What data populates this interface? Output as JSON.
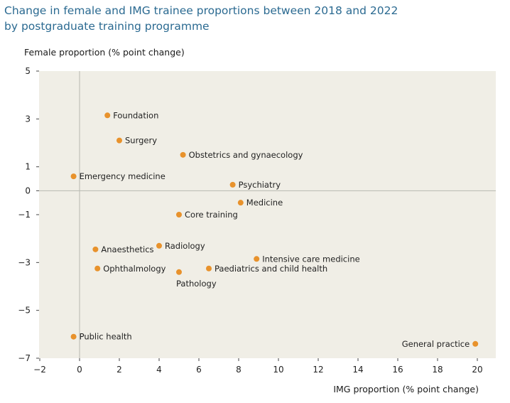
{
  "chart_data": {
    "type": "scatter",
    "title_lines": [
      "Change in female and IMG trainee proportions between 2018 and 2022",
      "by postgraduate training programme"
    ],
    "xlabel": "IMG proportion (% point change)",
    "ylabel": "Female proportion (% point change)",
    "xlim": [
      -2,
      21
    ],
    "ylim": [
      -7,
      5
    ],
    "xticks": [
      -2,
      0,
      2,
      4,
      6,
      8,
      10,
      12,
      14,
      16,
      18,
      20
    ],
    "yticks": [
      5,
      3,
      1,
      0,
      -1,
      -3,
      -5,
      -7
    ],
    "xtick_labels": [
      "−2",
      "0",
      "2",
      "4",
      "6",
      "8",
      "10",
      "12",
      "14",
      "16",
      "18",
      "20"
    ],
    "ytick_labels": [
      "5",
      "3",
      "1",
      "0",
      "−1",
      "−3",
      "−5",
      "−7"
    ],
    "grid": false,
    "points": [
      {
        "label": "Foundation",
        "x": 1.4,
        "y": 3.15,
        "label_pos": "right"
      },
      {
        "label": "Surgery",
        "x": 2.0,
        "y": 2.1,
        "label_pos": "right"
      },
      {
        "label": "Obstetrics and gynaecology",
        "x": 5.2,
        "y": 1.5,
        "label_pos": "right"
      },
      {
        "label": "Emergency medicine",
        "x": -0.3,
        "y": 0.6,
        "label_pos": "right"
      },
      {
        "label": "Psychiatry",
        "x": 7.7,
        "y": 0.25,
        "label_pos": "right"
      },
      {
        "label": "Medicine",
        "x": 8.1,
        "y": -0.5,
        "label_pos": "right"
      },
      {
        "label": "Core training",
        "x": 5.0,
        "y": -1.0,
        "label_pos": "right"
      },
      {
        "label": "Radiology",
        "x": 4.0,
        "y": -2.3,
        "label_pos": "right"
      },
      {
        "label": "Anaesthetics",
        "x": 0.8,
        "y": -2.45,
        "label_pos": "right"
      },
      {
        "label": "Intensive care medicine",
        "x": 8.9,
        "y": -2.85,
        "label_pos": "right"
      },
      {
        "label": "Ophthalmology",
        "x": 0.9,
        "y": -3.25,
        "label_pos": "right"
      },
      {
        "label": "Paediatrics and child health",
        "x": 6.5,
        "y": -3.25,
        "label_pos": "right"
      },
      {
        "label": "Pathology",
        "x": 5.0,
        "y": -3.4,
        "label_pos": "below"
      },
      {
        "label": "Public health",
        "x": -0.3,
        "y": -6.1,
        "label_pos": "right"
      },
      {
        "label": "General practice",
        "x": 19.9,
        "y": -6.4,
        "label_pos": "left"
      }
    ],
    "colors": {
      "point": "#e8922c",
      "plot_background": "#f0eee6",
      "reference_line": "#b8b8b0",
      "title": "#2b6a91"
    }
  }
}
